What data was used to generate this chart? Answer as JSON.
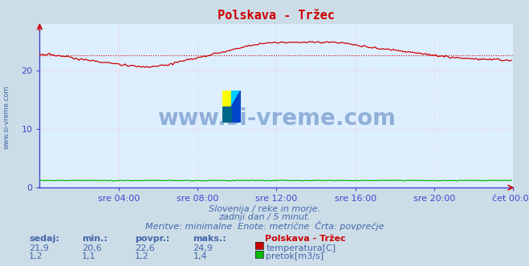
{
  "title": "Polskava - Tržec",
  "bg_color": "#ccdde8",
  "plot_bg_color": "#ddeeff",
  "grid_color": "#ffbbbb",
  "grid_style": "dotted",
  "xlabel_times": [
    "sre 04:00",
    "sre 08:00",
    "sre 12:00",
    "sre 16:00",
    "sre 20:00",
    "čet 00:00"
  ],
  "yticks": [
    0,
    10,
    20
  ],
  "ylim": [
    0,
    28
  ],
  "xlim": [
    0,
    287
  ],
  "temp_avg": 22.6,
  "temp_min": 20.6,
  "temp_max": 24.9,
  "temp_current": 21.9,
  "flow_avg": 1.2,
  "flow_min": 1.1,
  "flow_max": 1.4,
  "flow_current": 1.2,
  "temp_color": "#cc0000",
  "flow_color": "#00bb00",
  "avg_line_color": "#cc0000",
  "spine_color": "#4444cc",
  "watermark": "www.si-vreme.com",
  "watermark_color": "#3366aa",
  "sub_text1": "Slovenija / reke in morje.",
  "sub_text2": "zadnji dan / 5 minut.",
  "sub_text3": "Meritve: minimalne  Enote: metrične  Črta: povprečje",
  "legend_title": "Polskava - Tržec",
  "sidebar_text": "www.si-vreme.com",
  "tick_label_color": "#4466aa",
  "subtitle_color": "#4466aa",
  "n_points": 288
}
